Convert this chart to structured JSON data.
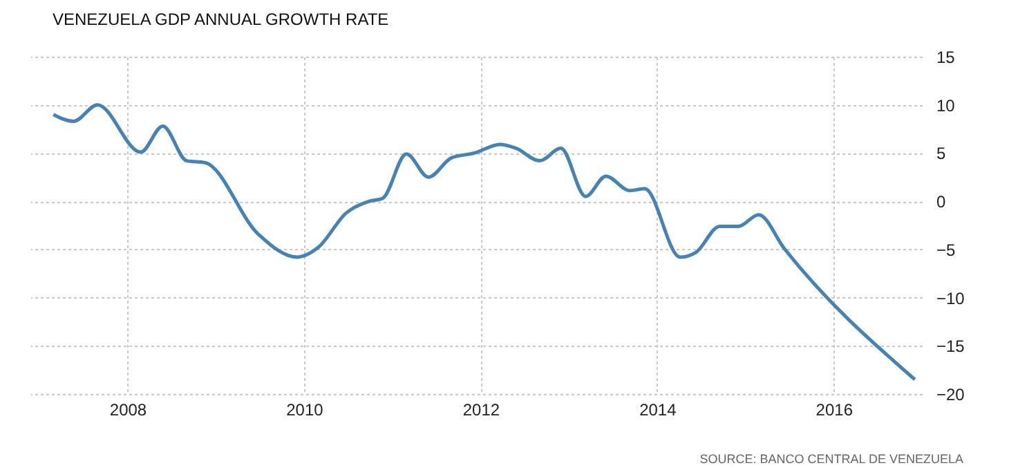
{
  "chart_data": {
    "type": "line",
    "title": "VENEZUELA GDP ANNUAL GROWTH RATE",
    "annotations": [
      "SOURCE: BANCO CENTRAL DE VENEZUELA"
    ],
    "x": [
      2007.16,
      2007.39,
      2007.66,
      2008.15,
      2008.4,
      2008.67,
      2008.88,
      2009.48,
      2009.92,
      2010.16,
      2010.48,
      2010.74,
      2010.89,
      2011.16,
      2011.41,
      2011.67,
      2011.93,
      2012.22,
      2012.4,
      2012.67,
      2012.91,
      2013.19,
      2013.42,
      2013.69,
      2013.86,
      2014.26,
      2014.44,
      2014.71,
      2014.92,
      2015.15,
      2015.44,
      2016.92
    ],
    "series": [
      {
        "color": "#4682b4",
        "values": [
          9.0,
          8.3,
          10.0,
          5.1,
          7.8,
          4.2,
          4.0,
          -3.4,
          -5.8,
          -4.8,
          -1.2,
          0,
          0.3,
          4.9,
          2.5,
          4.5,
          5.0,
          5.9,
          5.5,
          4.2,
          5.5,
          0.5,
          2.6,
          1.1,
          1.3,
          -5.8,
          -5.3,
          -2.6,
          -2.6,
          -1.4,
          -4.9,
          -18.5
        ]
      }
    ],
    "xlim": [
      2006.9,
      2017.0
    ],
    "xticks": [
      2008,
      2010,
      2012,
      2014,
      2016
    ],
    "ylim": [
      -20,
      15
    ],
    "yticks": [
      -20,
      -15,
      -10,
      -5,
      0,
      5,
      10,
      15
    ],
    "grid": true,
    "marker": "none",
    "line_style": "solid"
  }
}
